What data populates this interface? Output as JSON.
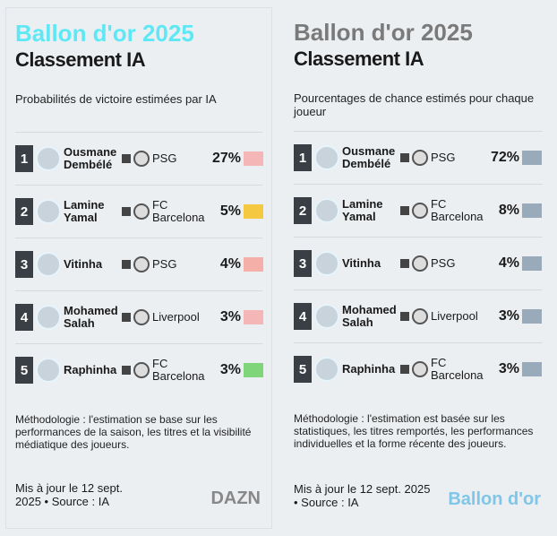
{
  "left": {
    "kicker": "Ballon d'or 2025",
    "title": "Classement IA",
    "subtitle": "Probabilités de victoire estimées par IA",
    "rows": [
      {
        "rank": "1",
        "name": "Ousmane Dembélé",
        "club": "PSG",
        "pct": "27%",
        "flag": "#f4b6b6"
      },
      {
        "rank": "2",
        "name": "Lamine Yamal",
        "club": "FC Barcelona",
        "pct": "5%",
        "flag": "#f5c842"
      },
      {
        "rank": "3",
        "name": "Vitinha",
        "club": "PSG",
        "pct": "4%",
        "flag": "#f4b0a8"
      },
      {
        "rank": "4",
        "name": "Mohamed Salah",
        "club": "Liverpool",
        "pct": "3%",
        "flag": "#f4b6b6"
      },
      {
        "rank": "5",
        "name": "Raphinha",
        "club": "FC Barcelona",
        "pct": "3%",
        "flag": "#7fd67a"
      }
    ],
    "footer": "Méthodologie : l'estimation se base sur les performances de la saison, les titres et la visibilité médiatique des joueurs.",
    "meta": "Mis à jour le 12 sept. 2025 • Source : IA",
    "logo": "DAZN"
  },
  "right": {
    "kicker": "Ballon d'or 2025",
    "title": "Classement IA",
    "subtitle": "Pourcentages de chance estimés pour chaque joueur",
    "rows": [
      {
        "rank": "1",
        "name": "Ousmane Dembélé",
        "club": "PSG",
        "pct": "72%",
        "flag": "#9ab"
      },
      {
        "rank": "2",
        "name": "Lamine Yamal",
        "club": "FC Barcelona",
        "pct": "8%",
        "flag": "#9ab"
      },
      {
        "rank": "3",
        "name": "Vitinha",
        "club": "PSG",
        "pct": "4%",
        "flag": "#9ab"
      },
      {
        "rank": "4",
        "name": "Mohamed Salah",
        "club": "Liverpool",
        "pct": "3%",
        "flag": "#9ab"
      },
      {
        "rank": "5",
        "name": "Raphinha",
        "club": "FC Barcelona",
        "pct": "3%",
        "flag": "#9ab"
      }
    ],
    "footer": "Méthodologie : l'estimation est basée sur les statistiques, les titres remportés, les performances individuelles et la forme récente des joueurs.",
    "meta": "Mis à jour le 12 sept. 2025 • Source : IA",
    "logo": "Ballon d'or"
  }
}
